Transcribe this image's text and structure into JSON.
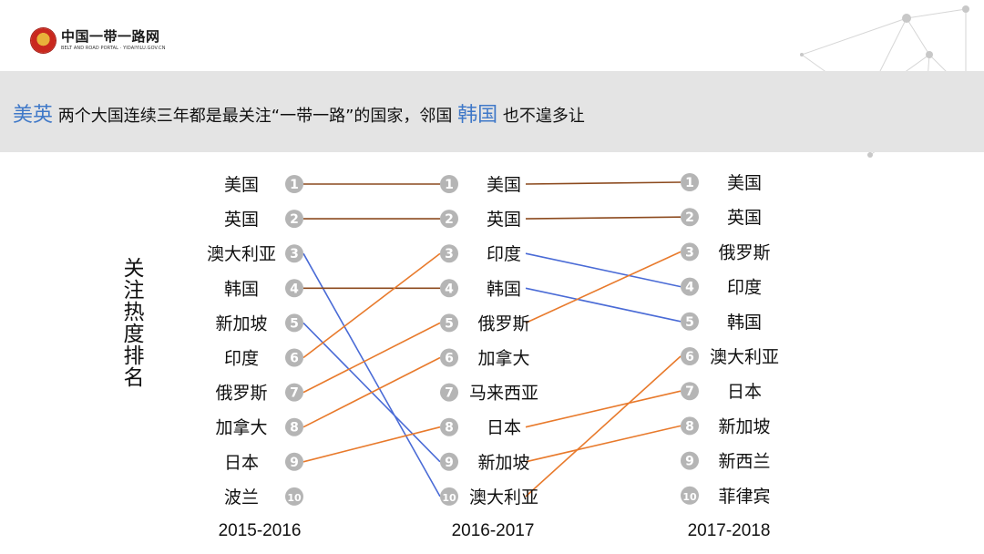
{
  "logo": {
    "name_cn": "中国一带一路网",
    "name_en": "BELT AND ROAD PORTAL · YIDAIYILU.GOV.CN"
  },
  "headline": {
    "highlight1": "美英",
    "text1": "两个大国连续三年都是最关注“一带一路”的国家，邻国",
    "highlight2": "韩国",
    "text2": "也不遑多让"
  },
  "y_label": "关注热度排名",
  "colors": {
    "accent": "#3f78c8",
    "up": "#e87a2c",
    "down": "#4a6bd6",
    "same": "#8c4a1e",
    "rank_circle": "#b5b5b5"
  },
  "periods": [
    {
      "label": "2015-2016",
      "ranking": [
        "美国",
        "英国",
        "澳大利亚",
        "韩国",
        "新加坡",
        "印度",
        "俄罗斯",
        "加拿大",
        "日本",
        "波兰"
      ]
    },
    {
      "label": "2016-2017",
      "ranking": [
        "美国",
        "英国",
        "印度",
        "韩国",
        "俄罗斯",
        "加拿大",
        "马来西亚",
        "日本",
        "新加坡",
        "澳大利亚"
      ]
    },
    {
      "label": "2017-2018",
      "ranking": [
        "美国",
        "英国",
        "俄罗斯",
        "印度",
        "韩国",
        "澳大利亚",
        "日本",
        "新加坡",
        "新西兰",
        "菲律宾"
      ]
    }
  ]
}
